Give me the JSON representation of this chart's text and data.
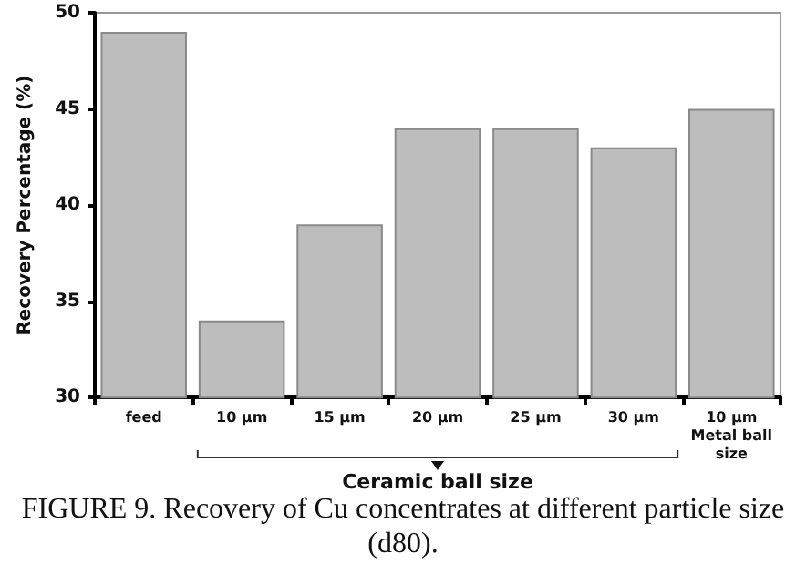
{
  "chart_data": {
    "type": "bar",
    "categories": [
      "feed",
      "10 μm",
      "15 μm",
      "20 μm",
      "25 μm",
      "30 μm",
      "10 μm\nMetal ball\nsize"
    ],
    "values": [
      49,
      34,
      39,
      44,
      44,
      43,
      45
    ],
    "color": "#bdbdbd",
    "ylabel": "Recovery Percentage (%)",
    "xlabel": "Ceramic ball size",
    "ylim": [
      30,
      50
    ],
    "yticks": [
      30,
      35,
      40,
      45,
      50
    ],
    "grid": false,
    "annotations": [
      "FIGURE 9. Recovery of Cu concentrates at different particle size (d80)."
    ]
  }
}
